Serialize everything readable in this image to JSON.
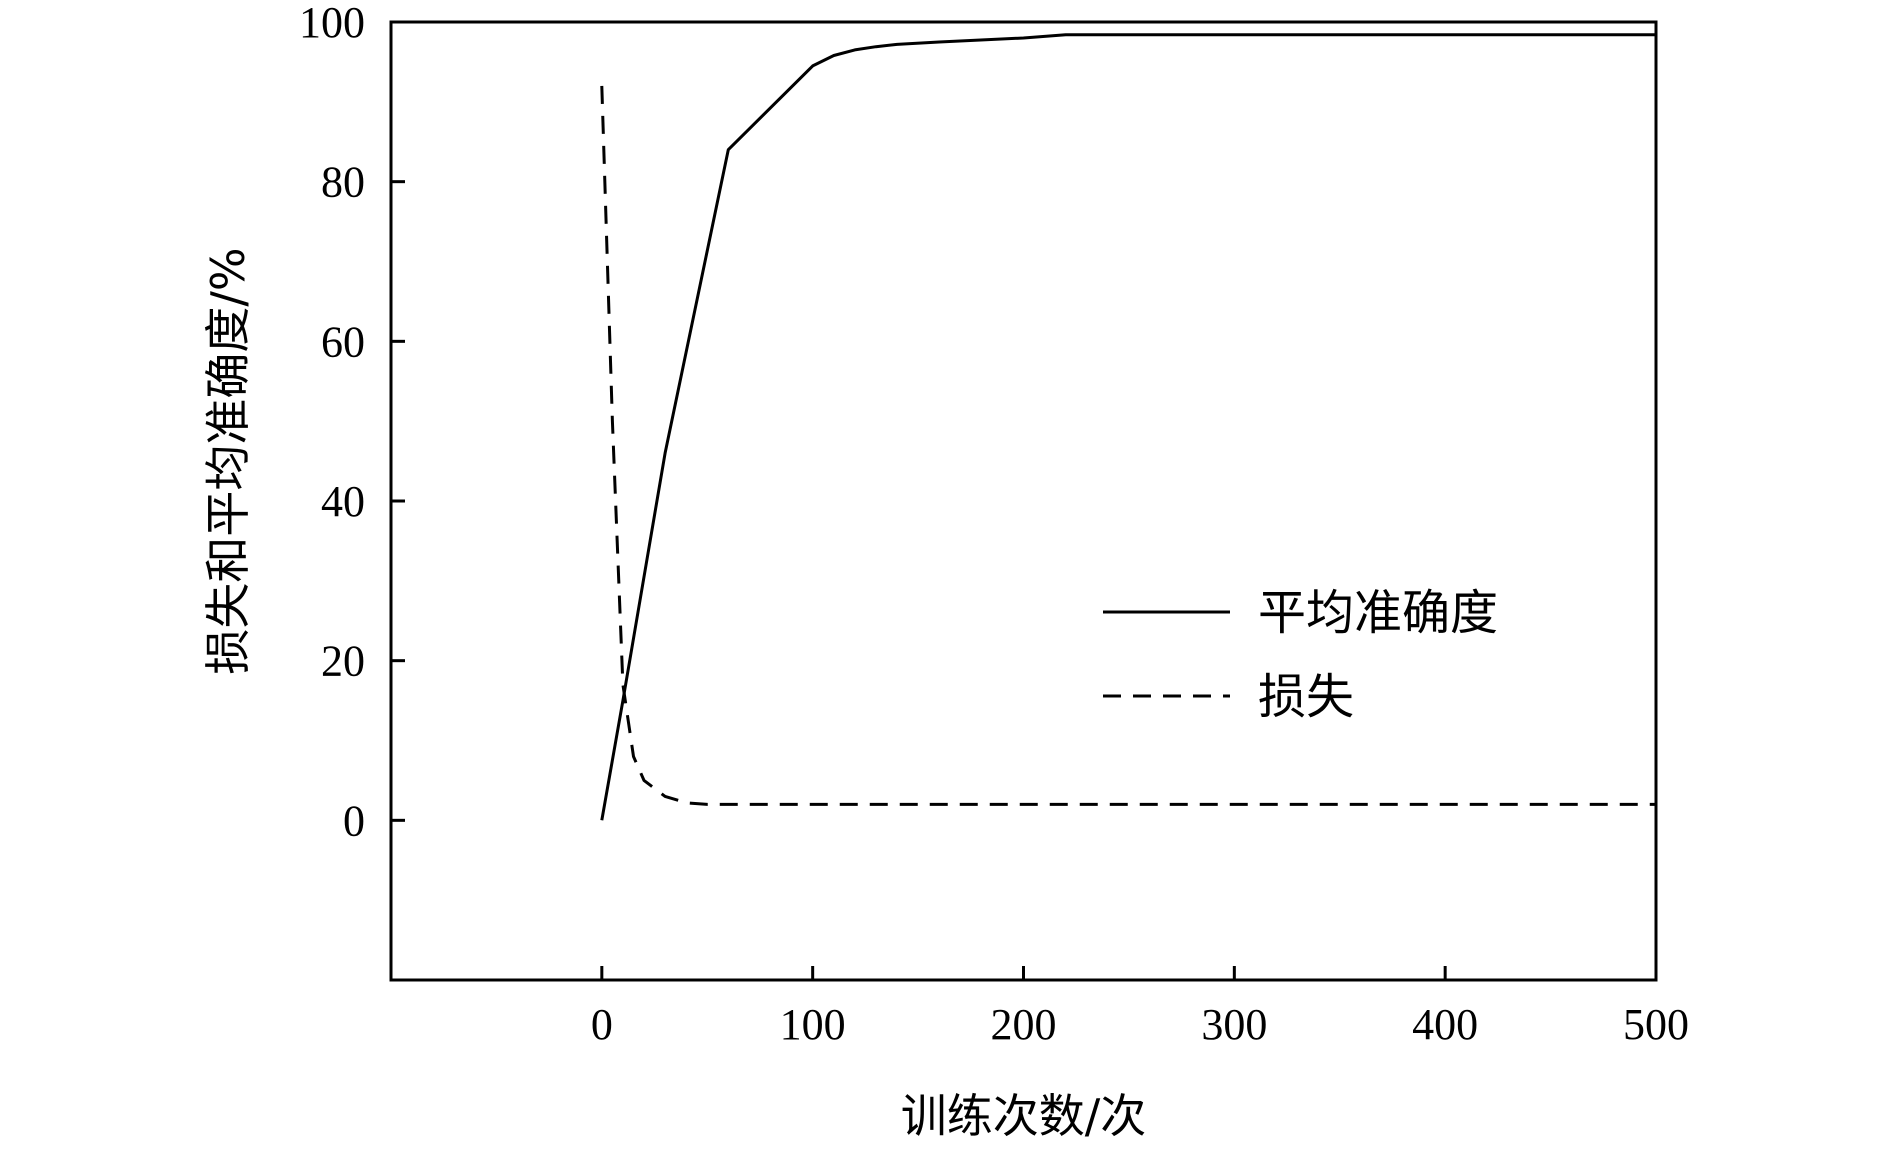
{
  "chart_data": {
    "type": "line",
    "xlabel": "训练次数/次",
    "ylabel": "损失和平均准确度/%",
    "xlim": [
      -100,
      500
    ],
    "ylim": [
      -20,
      100
    ],
    "x_ticks": [
      0,
      100,
      200,
      300,
      400,
      500
    ],
    "y_ticks": [
      0,
      20,
      40,
      60,
      80,
      100
    ],
    "grid": false,
    "legend_position": "right",
    "series": [
      {
        "name": "平均准确度",
        "line_style": "solid",
        "color": "#000000",
        "x": [
          0,
          10,
          30,
          60,
          100,
          110,
          120,
          130,
          140,
          160,
          200,
          220,
          300,
          500
        ],
        "y": [
          0,
          15,
          46,
          84,
          94.5,
          95.8,
          96.5,
          96.9,
          97.2,
          97.5,
          98,
          98.4,
          98.4,
          98.4
        ]
      },
      {
        "name": "损失",
        "line_style": "dashed",
        "color": "#000000",
        "x": [
          0,
          5,
          10,
          15,
          20,
          30,
          40,
          50,
          100,
          200,
          300,
          400,
          500
        ],
        "y": [
          92,
          50,
          17,
          8,
          5,
          3,
          2.2,
          2,
          2,
          2,
          2,
          2,
          2
        ]
      }
    ]
  }
}
